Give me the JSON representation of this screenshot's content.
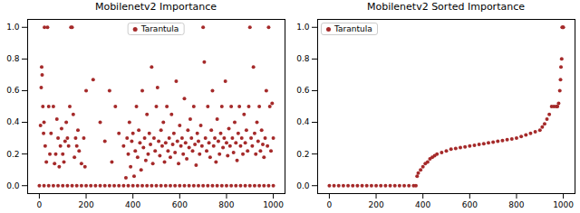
{
  "chart_data": [
    {
      "type": "scatter",
      "title": "Mobilenetv2 Importance",
      "x": [
        5,
        8,
        10,
        12,
        15,
        18,
        20,
        22,
        25,
        30,
        35,
        40,
        45,
        50,
        60,
        65,
        70,
        75,
        80,
        85,
        90,
        95,
        100,
        105,
        110,
        115,
        120,
        125,
        130,
        135,
        140,
        145,
        150,
        155,
        160,
        165,
        170,
        180,
        190,
        195,
        200,
        230,
        260,
        280,
        300,
        310,
        325,
        340,
        360,
        370,
        375,
        380,
        385,
        390,
        395,
        400,
        405,
        410,
        415,
        420,
        425,
        430,
        435,
        440,
        445,
        450,
        455,
        460,
        465,
        470,
        475,
        480,
        485,
        490,
        495,
        500,
        505,
        510,
        515,
        520,
        525,
        530,
        535,
        540,
        545,
        550,
        555,
        560,
        565,
        570,
        575,
        580,
        585,
        590,
        595,
        600,
        605,
        610,
        615,
        620,
        625,
        630,
        635,
        640,
        645,
        650,
        655,
        660,
        665,
        670,
        675,
        680,
        685,
        690,
        695,
        700,
        705,
        710,
        715,
        720,
        725,
        730,
        735,
        740,
        745,
        750,
        755,
        760,
        765,
        770,
        775,
        780,
        785,
        790,
        795,
        800,
        805,
        810,
        815,
        820,
        825,
        830,
        835,
        840,
        845,
        850,
        855,
        860,
        865,
        870,
        875,
        880,
        885,
        890,
        895,
        900,
        905,
        910,
        915,
        920,
        925,
        930,
        935,
        940,
        945,
        950,
        955,
        960,
        965,
        970,
        975,
        980,
        985,
        990,
        995,
        1000,
        0,
        20,
        40,
        60,
        80,
        100,
        120,
        140,
        160,
        180,
        200,
        220,
        240,
        260,
        280,
        300,
        320,
        340,
        360,
        380,
        400,
        420,
        440,
        460,
        480,
        500,
        520,
        540,
        560,
        580,
        600,
        620,
        640,
        660,
        680,
        700,
        720,
        740,
        760,
        780,
        800,
        820,
        840,
        860,
        880,
        900,
        920,
        940,
        960,
        980,
        1000
      ],
      "series": [
        {
          "name": "Tarantula",
          "color": "#a52a2a",
          "values": [
            0.38,
            0.62,
            0.75,
            0.7,
            0.5,
            0.33,
            0.4,
            1.0,
            0.25,
            0.15,
            1.0,
            0.5,
            0.2,
            0.33,
            0.5,
            0.14,
            0.2,
            0.42,
            0.3,
            0.12,
            0.25,
            0.36,
            0.2,
            0.15,
            0.28,
            0.4,
            0.3,
            0.25,
            0.5,
            1.0,
            1.0,
            0.45,
            0.18,
            0.3,
            0.25,
            0.35,
            0.22,
            0.14,
            0.3,
            0.12,
            0.6,
            0.67,
            0.4,
            0.28,
            0.6,
            0.15,
            0.5,
            0.33,
            0.25,
            0.05,
            0.3,
            0.2,
            0.4,
            0.12,
            0.28,
            0.33,
            0.06,
            0.22,
            0.5,
            0.18,
            0.35,
            0.27,
            0.1,
            0.6,
            0.24,
            0.3,
            0.16,
            0.45,
            0.2,
            0.33,
            0.26,
            0.75,
            0.14,
            0.3,
            0.22,
            0.5,
            0.62,
            0.28,
            0.19,
            0.35,
            0.25,
            0.4,
            0.15,
            0.27,
            0.5,
            0.22,
            0.3,
            0.18,
            0.45,
            0.26,
            0.33,
            0.21,
            0.66,
            0.28,
            0.14,
            0.38,
            0.25,
            0.3,
            0.2,
            0.55,
            0.27,
            0.17,
            0.35,
            0.24,
            0.42,
            0.3,
            0.22,
            0.5,
            0.26,
            0.13,
            0.33,
            0.28,
            0.2,
            0.38,
            0.25,
            1.0,
            0.78,
            0.3,
            0.22,
            0.5,
            0.27,
            0.18,
            0.35,
            0.6,
            0.25,
            0.3,
            0.15,
            0.42,
            0.28,
            0.2,
            0.33,
            0.5,
            0.24,
            0.3,
            0.66,
            0.27,
            0.19,
            0.36,
            0.25,
            0.5,
            0.3,
            0.21,
            0.4,
            0.27,
            0.16,
            0.33,
            0.5,
            0.25,
            0.3,
            0.2,
            0.45,
            0.27,
            0.35,
            0.22,
            0.5,
            1.0,
            0.3,
            0.25,
            0.75,
            0.33,
            0.2,
            0.4,
            0.28,
            0.5,
            0.22,
            0.35,
            0.26,
            0.18,
            0.3,
            0.6,
            0.25,
            1.0,
            0.5,
            0.22,
            0.52,
            0.3,
            0,
            0,
            0,
            0,
            0,
            0,
            0,
            0,
            0,
            0,
            0,
            0,
            0,
            0,
            0,
            0,
            0,
            0,
            0,
            0,
            0,
            0,
            0,
            0,
            0,
            0,
            0,
            0,
            0,
            0,
            0,
            0,
            0,
            0,
            0,
            0,
            0,
            0,
            0,
            0,
            0,
            0,
            0,
            0,
            0,
            0,
            0,
            0,
            0,
            0,
            0
          ]
        }
      ],
      "xlim": [
        -50,
        1050
      ],
      "ylim": [
        -0.05,
        1.05
      ],
      "xticks": [
        0,
        200,
        400,
        600,
        800,
        1000
      ],
      "yticks": [
        {
          "value": 0,
          "label": "0.0"
        },
        0.2,
        0.4,
        0.6,
        0.8,
        {
          "value": 1,
          "label": "1.0"
        }
      ],
      "marker": "circle",
      "legend": "upper center"
    },
    {
      "type": "scatter",
      "title": "Mobilenetv2 Sorted Importance",
      "x": [
        0,
        20,
        40,
        60,
        80,
        100,
        120,
        140,
        160,
        180,
        200,
        220,
        240,
        260,
        280,
        300,
        320,
        340,
        360,
        370,
        375,
        380,
        390,
        400,
        410,
        420,
        430,
        440,
        450,
        460,
        480,
        500,
        520,
        540,
        560,
        580,
        600,
        620,
        640,
        660,
        680,
        700,
        720,
        740,
        760,
        780,
        800,
        820,
        840,
        860,
        880,
        900,
        910,
        920,
        930,
        940,
        950,
        960,
        970,
        975,
        980,
        985,
        988,
        990,
        993,
        995,
        998,
        1000
      ],
      "series": [
        {
          "name": "Tarantula",
          "color": "#a52a2a",
          "values": [
            0,
            0,
            0,
            0,
            0,
            0,
            0,
            0,
            0,
            0,
            0,
            0,
            0,
            0,
            0,
            0,
            0,
            0,
            0,
            0,
            0.06,
            0.08,
            0.1,
            0.12,
            0.14,
            0.15,
            0.17,
            0.18,
            0.19,
            0.2,
            0.21,
            0.22,
            0.23,
            0.235,
            0.24,
            0.245,
            0.25,
            0.255,
            0.26,
            0.265,
            0.27,
            0.275,
            0.28,
            0.285,
            0.29,
            0.295,
            0.3,
            0.31,
            0.32,
            0.33,
            0.34,
            0.35,
            0.37,
            0.39,
            0.42,
            0.45,
            0.5,
            0.5,
            0.5,
            0.5,
            0.52,
            0.6,
            0.67,
            0.75,
            0.8,
            1.0,
            1.0,
            1.0
          ]
        }
      ],
      "xlim": [
        -50,
        1050
      ],
      "ylim": [
        -0.05,
        1.05
      ],
      "xticks": [
        0,
        200,
        400,
        600,
        800,
        1000
      ],
      "yticks": [
        {
          "value": 0,
          "label": "0.0"
        },
        0.2,
        0.4,
        0.6,
        0.8,
        {
          "value": 1,
          "label": "1.0"
        }
      ],
      "marker": "circle",
      "legend": "upper left"
    }
  ]
}
